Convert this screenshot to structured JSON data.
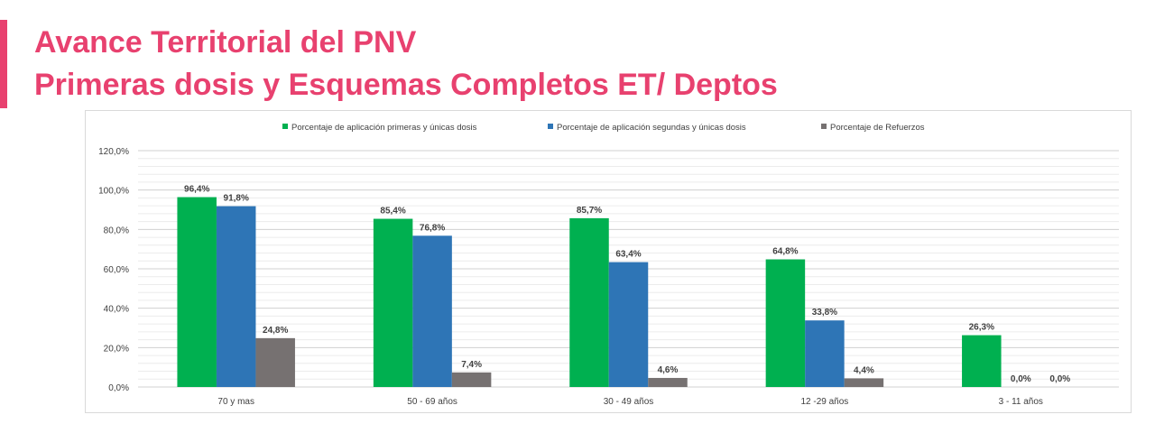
{
  "header": {
    "title_line1": "Avance Territorial del PNV",
    "title_line2": "Primeras dosis y Esquemas Completos ET/  Deptos",
    "accent_color": "#e8416f"
  },
  "chart_data": {
    "type": "bar",
    "categories": [
      "70  y mas",
      "50 - 69 años",
      "30 - 49 años",
      "12 -29 años",
      "3 - 11 años"
    ],
    "series": [
      {
        "name": "Porcentaje de aplicación primeras y únicas dosis",
        "color": "#00b050",
        "values": [
          96.4,
          85.4,
          85.7,
          64.8,
          26.3
        ],
        "labels": [
          "96,4%",
          "85,4%",
          "85,7%",
          "64,8%",
          "26,3%"
        ]
      },
      {
        "name": "Porcentaje de aplicación segundas y únicas dosis",
        "color": "#2e75b6",
        "values": [
          91.8,
          76.8,
          63.4,
          33.8,
          0.0
        ],
        "labels": [
          "91,8%",
          "76,8%",
          "63,4%",
          "33,8%",
          "0,0%"
        ]
      },
      {
        "name": "Porcentaje de Refuerzos",
        "color": "#767171",
        "values": [
          24.8,
          7.4,
          4.6,
          4.4,
          0.0
        ],
        "labels": [
          "24,8%",
          "7,4%",
          "4,6%",
          "4,4%",
          "0,0%"
        ]
      }
    ],
    "y_ticks": [
      "0,0%",
      "20,0%",
      "40,0%",
      "60,0%",
      "80,0%",
      "100,0%",
      "120,0%"
    ],
    "ylim": [
      0,
      120
    ],
    "grid": true,
    "legend_position": "top"
  }
}
